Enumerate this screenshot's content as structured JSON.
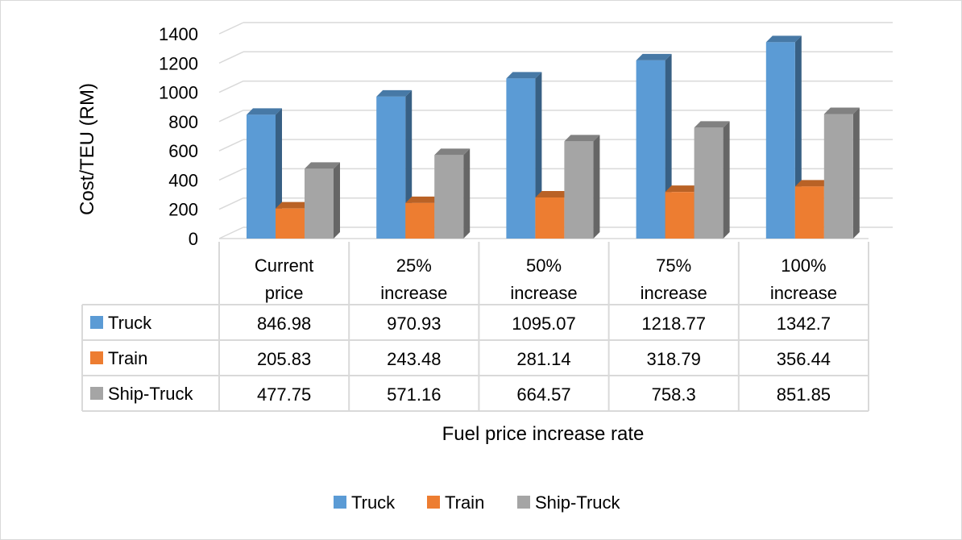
{
  "chart_data": {
    "type": "bar",
    "title": "",
    "xlabel": "Fuel price increase rate",
    "ylabel": "Cost/TEU (RM)",
    "ylim": [
      0,
      1400
    ],
    "ytick_step": 200,
    "grid": true,
    "legend_position": "bottom",
    "categories": [
      [
        "Current",
        "price"
      ],
      [
        "25%",
        "increase"
      ],
      [
        "50%",
        "increase"
      ],
      [
        "75%",
        "increase"
      ],
      [
        "100%",
        "increase"
      ]
    ],
    "series": [
      {
        "name": "Truck",
        "color": "#5b9bd5",
        "values": [
          846.98,
          970.93,
          1095.07,
          1218.77,
          1342.7
        ],
        "labels": [
          "846.98",
          "970.93",
          "1095.07",
          "1218.77",
          "1342.7"
        ]
      },
      {
        "name": "Train",
        "color": "#ed7d31",
        "values": [
          205.83,
          243.48,
          281.14,
          318.79,
          356.44
        ],
        "labels": [
          "205.83",
          "243.48",
          "281.14",
          "318.79",
          "356.44"
        ]
      },
      {
        "name": "Ship-Truck",
        "color": "#a5a5a5",
        "values": [
          477.75,
          571.16,
          664.57,
          758.3,
          851.85
        ],
        "labels": [
          "477.75",
          "571.16",
          "664.57",
          "758.3",
          "851.85"
        ]
      }
    ]
  }
}
